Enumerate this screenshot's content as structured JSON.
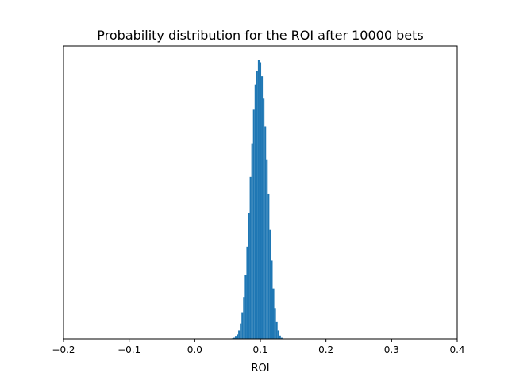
{
  "chart_data": {
    "type": "bar",
    "title": "Probability distribution for the ROI after 10000 bets",
    "xlabel": "ROI",
    "ylabel": "",
    "xlim": [
      -0.2,
      0.4
    ],
    "xticks": [
      -0.2,
      -0.1,
      0.0,
      0.1,
      0.2,
      0.3,
      0.4
    ],
    "xtick_labels": [
      "−0.2",
      "−0.1",
      "0.0",
      "0.1",
      "0.2",
      "0.3",
      "0.4"
    ],
    "y_axis_visible": false,
    "grid": false,
    "legend": "none",
    "color": "#1f77b4",
    "bin_width": 0.0025,
    "x": [
      0.0575,
      0.06,
      0.0625,
      0.065,
      0.0675,
      0.07,
      0.0725,
      0.075,
      0.0775,
      0.08,
      0.0825,
      0.085,
      0.0875,
      0.09,
      0.0925,
      0.095,
      0.0975,
      0.1,
      0.1025,
      0.105,
      0.1075,
      0.11,
      0.1125,
      0.115,
      0.1175,
      0.12,
      0.1225,
      0.125,
      0.1275,
      0.13,
      0.1325
    ],
    "values": [
      0.002,
      0.004,
      0.008,
      0.016,
      0.03,
      0.055,
      0.095,
      0.15,
      0.23,
      0.33,
      0.45,
      0.58,
      0.7,
      0.82,
      0.91,
      0.96,
      1.0,
      0.99,
      0.94,
      0.86,
      0.76,
      0.64,
      0.52,
      0.39,
      0.28,
      0.18,
      0.11,
      0.06,
      0.03,
      0.012,
      0.004
    ]
  }
}
